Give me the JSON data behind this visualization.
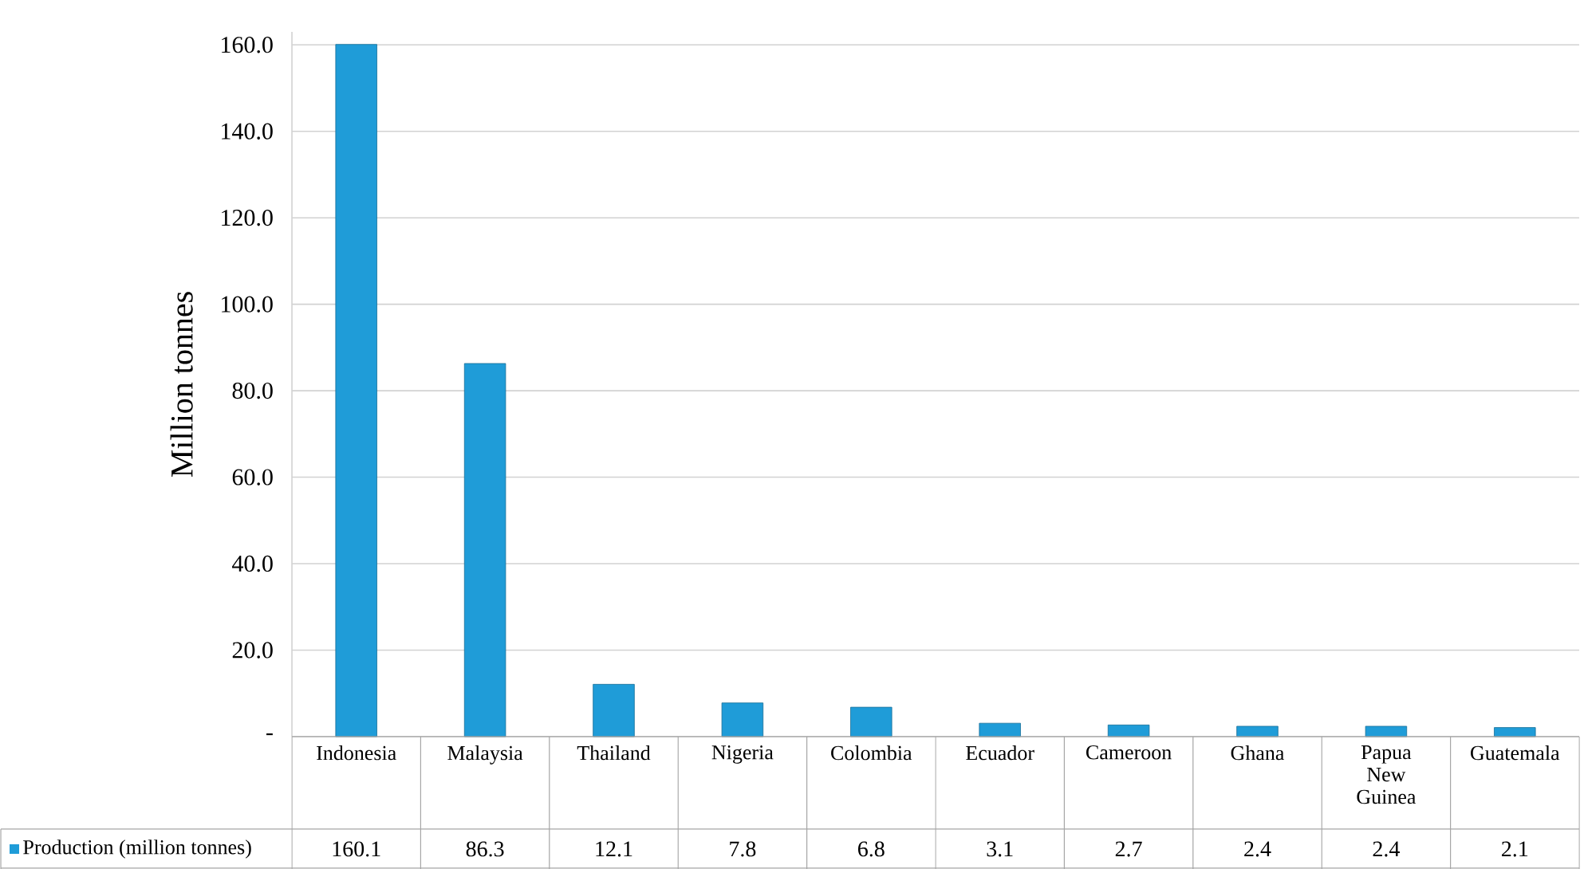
{
  "chart_data": {
    "type": "bar",
    "ylabel": "Million tonnes",
    "categories": [
      "Indonesia",
      "Malaysia",
      "Thailand",
      "Nigeria",
      "Colombia",
      "Ecuador",
      "Cameroon",
      "Ghana",
      "Papua New Guinea",
      "Guatemala"
    ],
    "series": [
      {
        "name": "Production (million tonnes)",
        "color": "#1f9cd8",
        "values": [
          160.1,
          86.3,
          12.1,
          7.8,
          6.8,
          3.1,
          2.7,
          2.4,
          2.4,
          2.1
        ]
      }
    ],
    "ylim": [
      0,
      163
    ],
    "yticks": [
      {
        "value": 0,
        "label": "-"
      },
      {
        "value": 20,
        "label": "20.0"
      },
      {
        "value": 40,
        "label": "40.0"
      },
      {
        "value": 60,
        "label": "60.0"
      },
      {
        "value": 80,
        "label": "80.0"
      },
      {
        "value": 100,
        "label": "100.0"
      },
      {
        "value": 120,
        "label": "120.0"
      },
      {
        "value": 140,
        "label": "140.0"
      },
      {
        "value": 160,
        "label": "160.0"
      }
    ],
    "grid": "y",
    "data_labels": true,
    "legend": "bottom"
  }
}
